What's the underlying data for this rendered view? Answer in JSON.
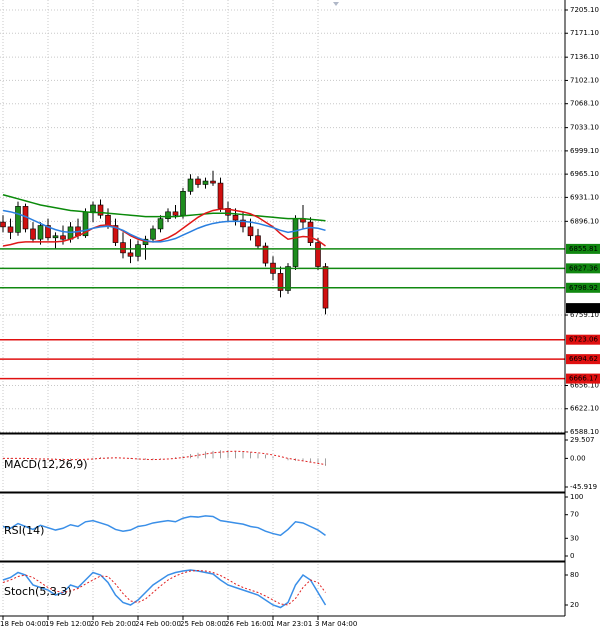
{
  "chart_data": {
    "type": "candlestick",
    "categories": [
      "18 Feb 04:00",
      null,
      null,
      null,
      null,
      null,
      "19 Feb 12:00",
      null,
      null,
      null,
      null,
      null,
      "20 Feb 20:00",
      null,
      null,
      null,
      null,
      null,
      "24 Feb 00:00",
      null,
      null,
      null,
      null,
      null,
      "25 Feb 08:00",
      null,
      null,
      null,
      null,
      null,
      "26 Feb 16:00",
      null,
      null,
      null,
      null,
      null,
      "1 Mar 23:01",
      null,
      null,
      null,
      null,
      null,
      "3 Mar 04:00",
      null
    ],
    "candles": {
      "open": [
        6895,
        6888,
        6880,
        6918,
        6885,
        6870,
        6890,
        6872,
        6875,
        6870,
        6888,
        6875,
        6910,
        6920,
        6905,
        6890,
        6865,
        6850,
        6845,
        6862,
        6870,
        6885,
        6900,
        6910,
        6905,
        6940,
        6958,
        6950,
        6955,
        6952,
        6915,
        6905,
        6898,
        6888,
        6875,
        6860,
        6835,
        6820,
        6795,
        6830,
        6900,
        6895,
        6865,
        6830
      ],
      "high": [
        6905,
        6900,
        6925,
        6922,
        6895,
        6895,
        6900,
        6880,
        6890,
        6895,
        6900,
        6915,
        6925,
        6928,
        6915,
        6900,
        6880,
        6870,
        6868,
        6875,
        6890,
        6905,
        6915,
        6920,
        6945,
        6965,
        6962,
        6960,
        6970,
        6960,
        6925,
        6915,
        6910,
        6900,
        6885,
        6865,
        6845,
        6830,
        6835,
        6905,
        6920,
        6902,
        6872,
        6835
      ],
      "low": [
        6880,
        6870,
        6875,
        6880,
        6865,
        6862,
        6868,
        6855,
        6862,
        6865,
        6870,
        6872,
        6895,
        6900,
        6885,
        6860,
        6842,
        6835,
        6838,
        6840,
        6865,
        6880,
        6895,
        6900,
        6900,
        6935,
        6945,
        6944,
        6948,
        6910,
        6895,
        6890,
        6880,
        6868,
        6855,
        6830,
        6810,
        6785,
        6790,
        6825,
        6885,
        6860,
        6825,
        6760
      ],
      "close": [
        6888,
        6880,
        6918,
        6885,
        6870,
        6890,
        6872,
        6875,
        6870,
        6888,
        6875,
        6910,
        6920,
        6905,
        6890,
        6865,
        6850,
        6845,
        6862,
        6870,
        6885,
        6900,
        6910,
        6905,
        6940,
        6958,
        6950,
        6955,
        6952,
        6915,
        6905,
        6898,
        6888,
        6875,
        6860,
        6835,
        6820,
        6795,
        6830,
        6900,
        6895,
        6865,
        6830,
        6769.24
      ],
      "up_color": "#1e8c1e",
      "down_color": "#d01010"
    },
    "overlays": [
      {
        "color": "#0a8a0a",
        "values": [
          6935,
          6932,
          6929,
          6926,
          6923,
          6920,
          6918,
          6916,
          6914,
          6912,
          6911,
          6910,
          6909,
          6909,
          6908,
          6907,
          6906,
          6905,
          6904,
          6903,
          6903,
          6903,
          6903,
          6903,
          6904,
          6905,
          6906,
          6907,
          6908,
          6908,
          6908,
          6907,
          6906,
          6905,
          6904,
          6903,
          6902,
          6901,
          6900,
          6900,
          6900,
          6899,
          6898,
          6897
        ]
      },
      {
        "color": "#e01818",
        "values": [
          6860,
          6862,
          6865,
          6866,
          6866,
          6866,
          6866,
          6866,
          6867,
          6870,
          6875,
          6880,
          6886,
          6890,
          6891,
          6888,
          6882,
          6875,
          6870,
          6867,
          6866,
          6868,
          6872,
          6878,
          6886,
          6894,
          6902,
          6908,
          6912,
          6914,
          6914,
          6912,
          6910,
          6907,
          6902,
          6895,
          6888,
          6878,
          6870,
          6872,
          6874,
          6873,
          6868,
          6860
        ]
      },
      {
        "color": "#2a7fe0",
        "values": [
          6912,
          6910,
          6907,
          6903,
          6898,
          6893,
          6888,
          6884,
          6881,
          6880,
          6881,
          6883,
          6886,
          6888,
          6889,
          6887,
          6883,
          6877,
          6872,
          6868,
          6866,
          6866,
          6868,
          6871,
          6876,
          6881,
          6886,
          6890,
          6893,
          6895,
          6896,
          6896,
          6896,
          6895,
          6893,
          6890,
          6887,
          6883,
          6880,
          6882,
          6885,
          6887,
          6886,
          6883
        ]
      }
    ],
    "levels": [
      {
        "value": 6855.81,
        "color": "#118811"
      },
      {
        "value": 6827.36,
        "color": "#118811"
      },
      {
        "value": 6798.92,
        "color": "#118811"
      },
      {
        "value": 6723.06,
        "color": "#e01010"
      },
      {
        "value": 6694.62,
        "color": "#e01010"
      },
      {
        "value": 6666.17,
        "color": "#e01010"
      }
    ],
    "ylim": [
      6588.1,
      7219.7
    ],
    "yticks": [
      {
        "value": 7205.1,
        "label": "7205.10"
      },
      {
        "value": 7171.1,
        "label": "7171.10"
      },
      {
        "value": 7136.1,
        "label": "7136.10"
      },
      {
        "value": 7102.1,
        "label": "7102.10"
      },
      {
        "value": 7068.1,
        "label": "7068.10"
      },
      {
        "value": 7033.1,
        "label": "7033.10"
      },
      {
        "value": 6999.1,
        "label": "6999.10"
      },
      {
        "value": 6965.1,
        "label": "6965.10"
      },
      {
        "value": 6931.1,
        "label": "6931.10"
      },
      {
        "value": 6896.1,
        "label": "6896.10"
      },
      {
        "value": 6759.1,
        "label": "6759.10"
      },
      {
        "value": 6656.1,
        "label": "6656.10"
      },
      {
        "value": 6622.1,
        "label": "6622.10"
      },
      {
        "value": 6588.1,
        "label": "6588.10"
      }
    ],
    "grid": true,
    "indicators": [
      {
        "label": "MACD(12,26,9)",
        "ylim": [
          -45.919,
          29.507
        ],
        "yticks": [
          29.507,
          {
            "value": 0,
            "label": "0.00"
          },
          -45.919
        ],
        "series": [
          {
            "style": "bar",
            "color": "#a0a0a0",
            "values": [
              -1,
              -1,
              0,
              0,
              -1,
              -1,
              -2,
              -2,
              -2,
              -2,
              -1,
              0,
              1,
              2,
              2,
              1,
              0,
              -1,
              -2,
              -2,
              -2,
              -1,
              0,
              2,
              4,
              7,
              9,
              11,
              12,
              13,
              13,
              12,
              11,
              10,
              8,
              6,
              3,
              0,
              -3,
              -4,
              -4,
              -6,
              -9,
              -12
            ]
          },
          {
            "style": "dotted",
            "color": "#e02020",
            "values": [
              0,
              0,
              0,
              0,
              -0.5,
              -1,
              -1,
              -1.5,
              -2,
              -2,
              -2,
              -1.5,
              -1,
              0,
              0.5,
              1,
              0.5,
              0,
              -1,
              -1.5,
              -2,
              -1.5,
              -1,
              0,
              1.5,
              3,
              5,
              7,
              9,
              10,
              11,
              11.5,
              11,
              10,
              9,
              7.5,
              5.5,
              3,
              0,
              -2,
              -4,
              -6,
              -8,
              -10
            ]
          }
        ]
      },
      {
        "label": "RSI(14)",
        "ylim": [
          0,
          100
        ],
        "yticks": [
          100,
          70,
          30,
          0
        ],
        "series": [
          {
            "style": "line",
            "color": "#3a8fe8",
            "values": [
              50,
              47,
              55,
              50,
              45,
              52,
              48,
              44,
              47,
              53,
              50,
              58,
              60,
              56,
              52,
              45,
              42,
              44,
              50,
              52,
              56,
              58,
              60,
              58,
              64,
              67,
              66,
              68,
              67,
              60,
              58,
              56,
              54,
              50,
              48,
              42,
              38,
              35,
              45,
              58,
              56,
              50,
              44,
              35
            ]
          }
        ]
      },
      {
        "label": "Stoch(5,3,3)",
        "ylim": [
          0,
          100
        ],
        "yticks": [
          80,
          20
        ],
        "series": [
          {
            "style": "line",
            "color": "#3a8fe8",
            "values": [
              70,
              75,
              85,
              80,
              60,
              55,
              50,
              40,
              45,
              60,
              55,
              70,
              85,
              80,
              65,
              40,
              25,
              20,
              30,
              45,
              60,
              70,
              80,
              85,
              88,
              90,
              88,
              85,
              82,
              70,
              60,
              55,
              50,
              45,
              40,
              30,
              20,
              15,
              25,
              60,
              80,
              70,
              45,
              20
            ]
          },
          {
            "style": "dotted",
            "color": "#e02020",
            "values": [
              65,
              70,
              77,
              80,
              75,
              65,
              55,
              48,
              45,
              48,
              53,
              62,
              70,
              78,
              77,
              62,
              43,
              28,
              25,
              32,
              45,
              58,
              70,
              78,
              84,
              88,
              89,
              88,
              85,
              79,
              71,
              62,
              55,
              50,
              45,
              38,
              30,
              22,
              20,
              33,
              55,
              70,
              65,
              45
            ]
          }
        ]
      }
    ]
  }
}
